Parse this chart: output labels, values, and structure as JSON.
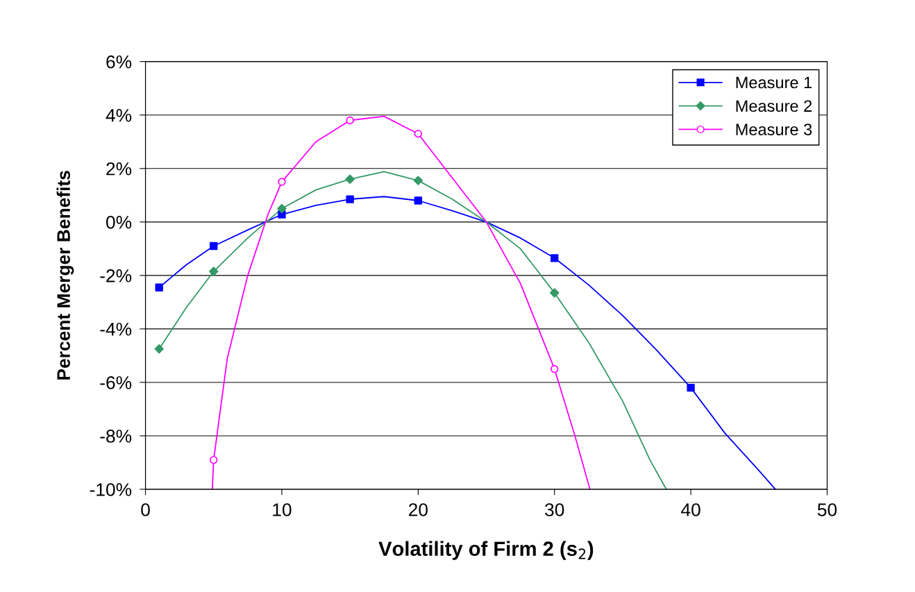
{
  "chart_data": {
    "type": "line",
    "xlabel": "Volatility of Firm 2 (s$_{2}$)",
    "ylabel": "Percent Merger Benefits",
    "xlim": [
      0,
      50
    ],
    "xticks": [
      0,
      10,
      20,
      30,
      40,
      50
    ],
    "ylim": [
      -10,
      6
    ],
    "yticks": [
      {
        "value": -10,
        "label": "-10%"
      },
      {
        "value": -8,
        "label": "-8%"
      },
      {
        "value": -6,
        "label": "-6%"
      },
      {
        "value": -4,
        "label": "-4%"
      },
      {
        "value": -2,
        "label": "-2%"
      },
      {
        "value": 0,
        "label": "0%"
      },
      {
        "value": 2,
        "label": "2%"
      },
      {
        "value": 4,
        "label": "4%"
      },
      {
        "value": 6,
        "label": "6%"
      }
    ],
    "grid": "y",
    "legend": "top right",
    "series": [
      {
        "marker": "none",
        "color": "#0000ff",
        "x": [
          1,
          3,
          5,
          7.5,
          10,
          12.5,
          15,
          17.5,
          20,
          22.5,
          25,
          27.5,
          30,
          32.5,
          35,
          37.5,
          40,
          42.5,
          45,
          46.2
        ],
        "values": [
          -2.45,
          -1.6,
          -0.9,
          -0.3,
          0.28,
          0.62,
          0.85,
          0.95,
          0.8,
          0.42,
          0,
          -0.6,
          -1.35,
          -2.35,
          -3.5,
          -4.8,
          -6.2,
          -7.9,
          -9.3,
          -10
        ]
      },
      {
        "type": "scatter",
        "name": "Measure 1",
        "marker": "square",
        "color": "#0000ff",
        "x": [
          1,
          5,
          10,
          15,
          20,
          30,
          40
        ],
        "values": [
          -2.45,
          -0.9,
          0.28,
          0.85,
          0.8,
          -1.35,
          -6.2
        ]
      },
      {
        "marker": "none",
        "color": "#339966",
        "x": [
          1,
          3,
          5,
          7.5,
          10,
          12.5,
          15,
          17.5,
          20,
          22.5,
          25,
          27.5,
          30,
          32.5,
          35,
          37,
          38.2
        ],
        "values": [
          -4.75,
          -3.2,
          -1.85,
          -0.6,
          0.5,
          1.2,
          1.6,
          1.88,
          1.55,
          0.85,
          0,
          -1.0,
          -2.65,
          -4.5,
          -6.7,
          -8.9,
          -10
        ]
      },
      {
        "type": "scatter",
        "name": "Measure 2",
        "marker": "diamond",
        "color": "#339966",
        "x": [
          1,
          5,
          10,
          15,
          20,
          30
        ],
        "values": [
          -4.75,
          -1.85,
          0.5,
          1.6,
          1.55,
          -2.65
        ]
      },
      {
        "marker": "none",
        "color": "#ff00ff",
        "x": [
          4.9,
          5,
          6,
          7.5,
          9,
          10,
          12.5,
          15,
          17.5,
          20,
          22.5,
          25,
          27.5,
          30,
          31.5,
          32.6
        ],
        "values": [
          -10,
          -8.9,
          -5.1,
          -2.0,
          0.3,
          1.5,
          3.0,
          3.8,
          3.95,
          3.3,
          1.65,
          0,
          -2.3,
          -5.5,
          -8,
          -10
        ]
      },
      {
        "type": "scatter",
        "name": "Measure 3",
        "marker": "circle",
        "color": "#ff00ff",
        "x": [
          5,
          10,
          15,
          20,
          30
        ],
        "values": [
          -8.9,
          1.5,
          3.8,
          3.3,
          -5.5
        ]
      }
    ]
  }
}
